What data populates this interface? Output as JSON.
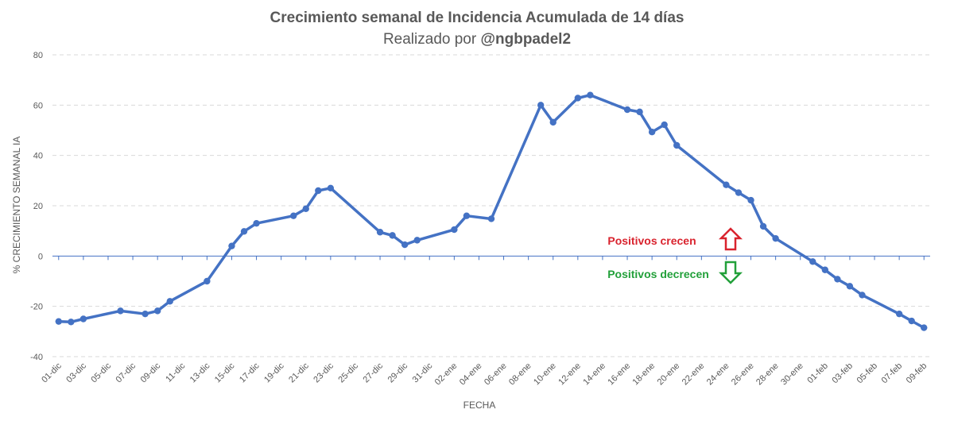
{
  "colors": {
    "series": "#4472c4",
    "grid": "#d9d9d9",
    "zero_line": "#4472c4",
    "text": "#595959",
    "up_arrow": "#d9232e",
    "down_arrow": "#22a03a"
  },
  "chart_data": {
    "type": "line",
    "title": "Crecimiento semanal de Incidencia Acumulada de 14 días",
    "subtitle_prefix": "Realizado por ",
    "subtitle_handle": "@ngbpadel2",
    "xlabel": "FECHA",
    "ylabel": "% CRECIMIENTO SEMANAL IA",
    "ylim": [
      -40,
      80
    ],
    "yticks": [
      -40,
      -20,
      0,
      20,
      40,
      60,
      80
    ],
    "grid": true,
    "legend": "none",
    "x_start_date": "01-dic",
    "x_tick_labels": [
      "01-dic",
      "03-dic",
      "05-dic",
      "07-dic",
      "09-dic",
      "11-dic",
      "13-dic",
      "15-dic",
      "17-dic",
      "19-dic",
      "21-dic",
      "23-dic",
      "25-dic",
      "27-dic",
      "29-dic",
      "31-dic",
      "02-ene",
      "04-ene",
      "06-ene",
      "08-ene",
      "10-ene",
      "12-ene",
      "14-ene",
      "16-ene",
      "18-ene",
      "20-ene",
      "22-ene",
      "24-ene",
      "26-ene",
      "28-ene",
      "30-ene",
      "01-feb",
      "03-feb",
      "05-feb",
      "07-feb",
      "09-feb"
    ],
    "x_tick_day_offsets": [
      0,
      2,
      4,
      6,
      8,
      10,
      12,
      14,
      16,
      18,
      20,
      22,
      24,
      26,
      28,
      30,
      32,
      34,
      36,
      38,
      40,
      42,
      44,
      46,
      48,
      50,
      52,
      54,
      56,
      58,
      60,
      62,
      64,
      66,
      68,
      70
    ],
    "x_range_days": [
      -0.5,
      70.5
    ],
    "series": [
      {
        "name": "% crecimiento semanal IA",
        "x_day_offsets": [
          0,
          1,
          2,
          5,
          7,
          8,
          9,
          12,
          14,
          15,
          16,
          19,
          20,
          21,
          22,
          26,
          27,
          28,
          29,
          32,
          33,
          35,
          39,
          40,
          42,
          43,
          46,
          47,
          48,
          49,
          50,
          54,
          55,
          56,
          57,
          58,
          61,
          62,
          63,
          64,
          65,
          68,
          69,
          70
        ],
        "dates": [
          "01-dic",
          "02-dic",
          "03-dic",
          "06-dic",
          "08-dic",
          "09-dic",
          "10-dic",
          "13-dic",
          "15-dic",
          "16-dic",
          "17-dic",
          "20-dic",
          "21-dic",
          "22-dic",
          "23-dic",
          "27-dic",
          "28-dic",
          "29-dic",
          "30-dic",
          "02-ene",
          "03-ene",
          "05-ene",
          "09-ene",
          "10-ene",
          "12-ene",
          "13-ene",
          "16-ene",
          "17-ene",
          "18-ene",
          "19-ene",
          "20-ene",
          "24-ene",
          "25-ene",
          "26-ene",
          "27-ene",
          "28-ene",
          "31-ene",
          "01-feb",
          "02-feb",
          "03-feb",
          "04-feb",
          "07-feb",
          "08-feb",
          "09-feb"
        ],
        "values": [
          -26,
          -26.2,
          -25,
          -21.8,
          -23,
          -21.8,
          -18,
          -10,
          4,
          9.8,
          13,
          16,
          18.8,
          26,
          27,
          9.5,
          8.2,
          4.5,
          6.3,
          10.5,
          16,
          14.8,
          60,
          53.2,
          62.8,
          64,
          58.2,
          57.3,
          49.3,
          52.2,
          44,
          28.3,
          25.2,
          22.2,
          11.8,
          7,
          -2.2,
          -5.5,
          -9.2,
          -12,
          -15.5,
          -23,
          -25.8,
          -28.5
        ]
      }
    ],
    "annotations": [
      {
        "text": "Positivos crecen",
        "arrow": "up",
        "color": "red"
      },
      {
        "text": "Positivos decrecen",
        "arrow": "down",
        "color": "green"
      }
    ]
  }
}
